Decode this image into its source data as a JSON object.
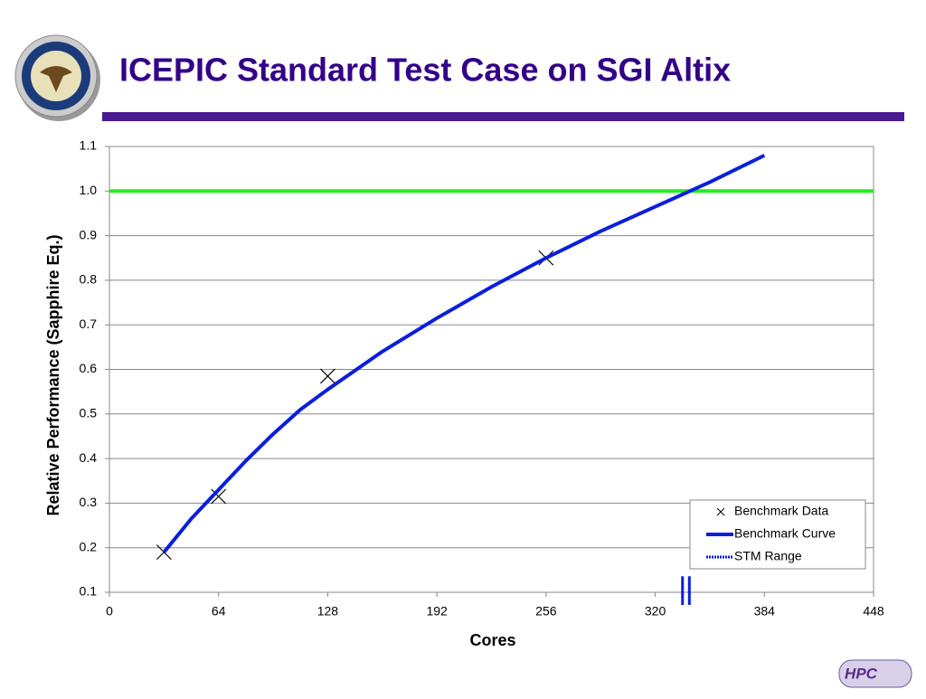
{
  "chart_data": {
    "type": "scatter-line",
    "title": "ICEPIC Standard Test Case on SGI Altix",
    "x_label": "Cores",
    "y_label": "Relative Performance (Sapphire Eq.)",
    "xlim": [
      0,
      448
    ],
    "xticks": [
      0,
      64,
      128,
      192,
      256,
      320,
      384,
      448
    ],
    "ylim": [
      0.1,
      1.1
    ],
    "yticks": [
      0.1,
      0.2,
      0.3,
      0.4,
      0.5,
      0.6,
      0.7,
      0.8,
      0.9,
      {
        "value": 1.0,
        "label": "1.0"
      },
      1.1
    ],
    "grid": true,
    "legend": "lower right",
    "reference_line": {
      "value": 1.0,
      "color": "#22ee22"
    },
    "series": [
      {
        "name": "Benchmark Data",
        "kind": "marker",
        "color": "#000000",
        "x": [
          32,
          64,
          128,
          256
        ],
        "values": [
          0.19,
          0.315,
          0.585,
          0.85
        ]
      },
      {
        "name": "Benchmark Curve",
        "kind": "line",
        "color": "#0a1edc",
        "x": [
          32,
          48,
          64,
          80,
          96,
          112,
          128,
          160,
          192,
          224,
          256,
          288,
          320,
          352,
          384
        ],
        "values": [
          0.19,
          0.265,
          0.33,
          0.395,
          0.455,
          0.51,
          0.555,
          0.64,
          0.715,
          0.785,
          0.85,
          0.91,
          0.965,
          1.02,
          1.08
        ]
      },
      {
        "name": "STM Range",
        "kind": "range",
        "color": "#0a1edc",
        "x": [
          336,
          340
        ],
        "values": [
          0.14,
          0.14
        ]
      }
    ]
  },
  "logo": "HPC"
}
